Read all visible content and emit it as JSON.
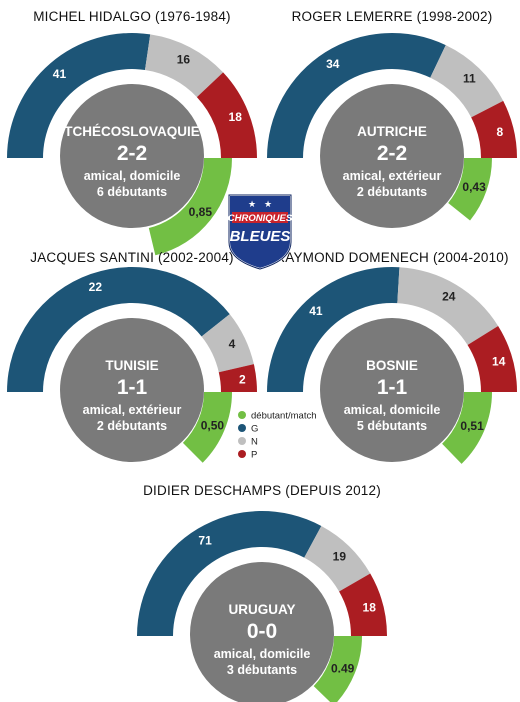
{
  "colors": {
    "G": "#1d5577",
    "N": "#bfbfbf",
    "P": "#ab1d22",
    "debutants": "#72bf44",
    "center": "#7a7a7a"
  },
  "logo": {
    "line1": "CHRONIQUES",
    "line2": "BLEUES"
  },
  "legend": [
    {
      "key": "debutants",
      "label": "débutant/match"
    },
    {
      "key": "G",
      "label": "G"
    },
    {
      "key": "N",
      "label": "N"
    },
    {
      "key": "P",
      "label": "P"
    }
  ],
  "chart_data": [
    {
      "type": "pie",
      "title": "MICHEL HIDALGO (1976-1984)",
      "values": {
        "G": 41,
        "N": 16,
        "P": 18
      },
      "debutants_par_match": "0,85",
      "debutants_ratio": 0.85,
      "opponent": "TCHÉCOSLOVAQUIE",
      "score": "2-2",
      "match_type": "amical, domicile",
      "debutants": "6 débutants"
    },
    {
      "type": "pie",
      "title": "ROGER LEMERRE (1998-2002)",
      "values": {
        "G": 34,
        "N": 11,
        "P": 8
      },
      "debutants_par_match": "0,43",
      "debutants_ratio": 0.43,
      "opponent": "AUTRICHE",
      "score": "2-2",
      "match_type": "amical, extérieur",
      "debutants": "2 débutants"
    },
    {
      "type": "pie",
      "title": "JACQUES SANTINI (2002-2004)",
      "values": {
        "G": 22,
        "N": 4,
        "P": 2
      },
      "debutants_par_match": "0,50",
      "debutants_ratio": 0.5,
      "opponent": "TUNISIE",
      "score": "1-1",
      "match_type": "amical, extérieur",
      "debutants": "2 débutants"
    },
    {
      "type": "pie",
      "title": "RAYMOND DOMENECH (2004-2010)",
      "values": {
        "G": 41,
        "N": 24,
        "P": 14
      },
      "debutants_par_match": "0,51",
      "debutants_ratio": 0.51,
      "opponent": "BOSNIE",
      "score": "1-1",
      "match_type": "amical, domicile",
      "debutants": "5 débutants"
    },
    {
      "type": "pie",
      "title": "DIDIER DESCHAMPS (DEPUIS 2012)",
      "values": {
        "G": 71,
        "N": 19,
        "P": 18
      },
      "debutants_par_match": "0.49",
      "debutants_ratio": 0.49,
      "opponent": "URUGUAY",
      "score": "0-0",
      "match_type": "amical, domicile",
      "debutants": "3 débutants"
    }
  ]
}
